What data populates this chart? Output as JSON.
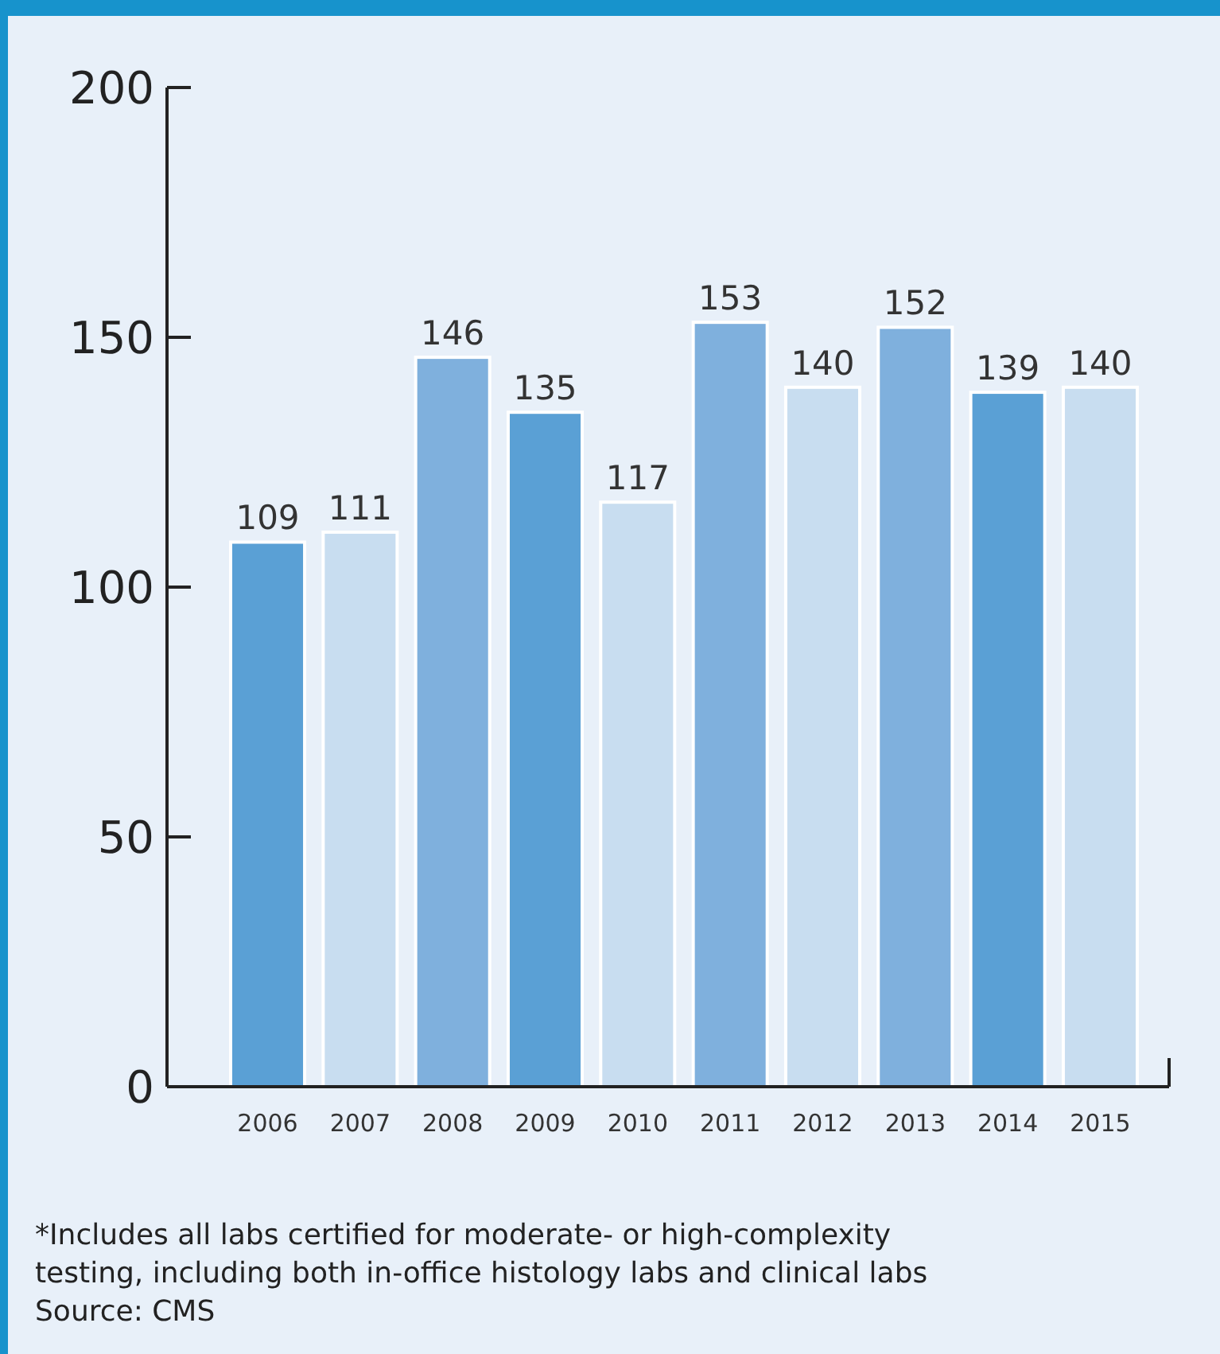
{
  "chart_data": {
    "type": "bar",
    "categories": [
      "2006",
      "2007",
      "2008",
      "2009",
      "2010",
      "2011",
      "2012",
      "2013",
      "2014",
      "2015"
    ],
    "values": [
      109,
      111,
      146,
      135,
      117,
      153,
      140,
      152,
      139,
      140
    ],
    "colors": [
      "#5aa0d5",
      "#c8ddf0",
      "#7fb0dd",
      "#5aa0d5",
      "#c8ddf0",
      "#7fb0dd",
      "#c8ddf0",
      "#7fb0dd",
      "#5aa0d5",
      "#c8ddf0"
    ],
    "ylim": [
      0,
      200
    ],
    "yticks": [
      0,
      50,
      100,
      150,
      200
    ],
    "data_labels": true,
    "annotations": [
      "*Includes all labs certified for moderate- or high-complexity testing, including both in-office histology labs and clinical labs",
      "Source: CMS"
    ]
  }
}
